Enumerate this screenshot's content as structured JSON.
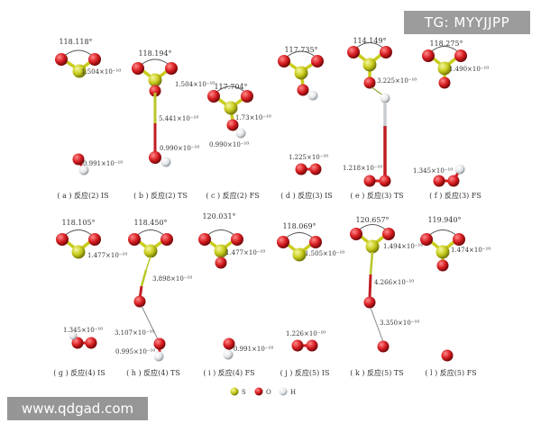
{
  "watermarks": {
    "top_right": "TG: MYYJJPP",
    "bottom_left": "www.qdgad.com"
  },
  "colors": {
    "S": "#c8cc1c",
    "O": "#d81e22",
    "H": "#e9ecee",
    "bond_SO": "#c8cc1c",
    "bond_OH": "#d81e22",
    "dashed": "#8fa838",
    "text": "#333333"
  },
  "legend": [
    {
      "element": "S",
      "label": "S"
    },
    {
      "element": "O",
      "label": "O"
    },
    {
      "element": "H",
      "label": "H"
    }
  ],
  "panels": {
    "a": {
      "caption": "( a ) 反应(2) IS",
      "angle": "118.118°",
      "bond_so": "1.504×10⁻¹⁰",
      "bond_oh": "0.991×10⁻¹⁰"
    },
    "b": {
      "caption": "( b ) 反应(2) TS",
      "angle": "118.194°",
      "bond_so": "1.504×10⁻¹⁰",
      "bond_long": "5.441×10⁻¹⁰",
      "bond_oh": "0.990×10⁻¹⁰"
    },
    "c": {
      "caption": "( c ) 反应(2) FS",
      "angle": "117.704°",
      "bond_so": "1.73×10⁻¹⁰",
      "bond_oh": "0.990×10⁻¹⁰"
    },
    "d": {
      "caption": "( d ) 反应(3) IS",
      "angle": "117.735°",
      "bond_oo": "1.225×10⁻¹⁰"
    },
    "e": {
      "caption": "( e ) 反应(3) TS",
      "angle": "114.149°",
      "bond_oh": "3.225×10⁻¹⁰",
      "bond_long": "1.218×10⁻¹⁰"
    },
    "f": {
      "caption": "( f ) 反应(3) FS",
      "angle": "118.275°",
      "bond_so": "1.490×10⁻¹⁰",
      "bond_oh": "1.345×10⁻¹⁰"
    },
    "g": {
      "caption": "( g ) 反应(4) IS",
      "angle": "118.105°",
      "bond_so": "1.477×10⁻¹⁰",
      "bond_oh": "1.345×10⁻¹⁰"
    },
    "h": {
      "caption": "( h ) 反应(4) TS",
      "angle": "118.450°",
      "bond_long": "3.898×10⁻¹⁰",
      "bond_oo": "3.107×10⁻¹⁰",
      "bond_oh": "0.995×10⁻¹⁰"
    },
    "i": {
      "caption": "( i ) 反应(4) FS",
      "angle": "120.031°",
      "bond_so": "1.477×10⁻¹⁰",
      "bond_oh": "0.991×10⁻¹⁰"
    },
    "j": {
      "caption": "( j ) 反应(5) IS",
      "angle": "118.069°",
      "bond_so": "1.505×10⁻¹⁰",
      "bond_oo": "1.226×10⁻¹⁰"
    },
    "k": {
      "caption": "( k ) 反应(5) TS",
      "angle": "120.657°",
      "bond_so": "1.494×10⁻¹⁰",
      "bond_long": "4.266×10⁻¹⁰",
      "bond_oo": "3.350×10⁻¹⁰"
    },
    "l": {
      "caption": "( l ) 反应(5) FS",
      "angle": "119.940°",
      "bond_so": "1.474×10⁻¹⁰"
    }
  }
}
